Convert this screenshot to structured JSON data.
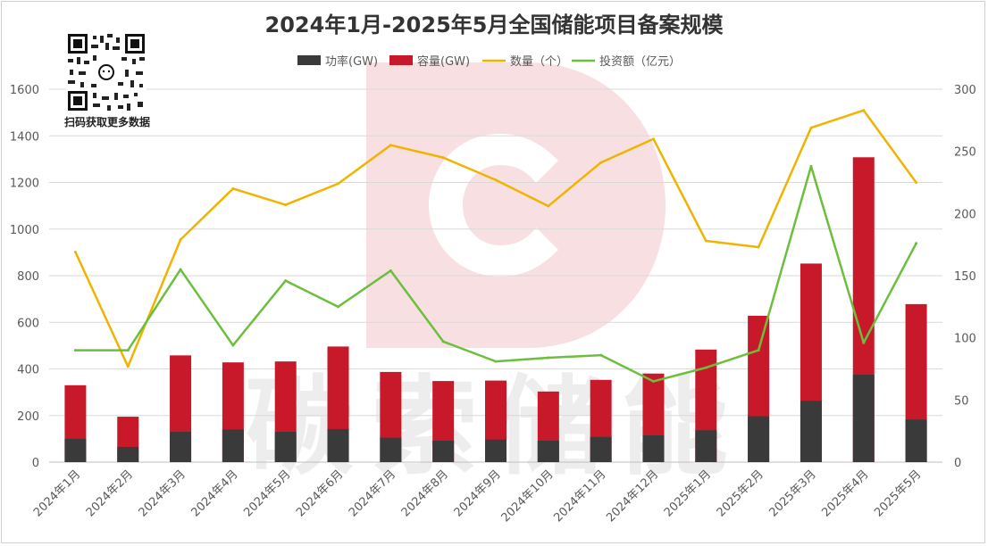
{
  "colors": {
    "power": "#3a3a3a",
    "capacity": "#c8192b",
    "count": "#f0b400",
    "investment": "#6cbf3c",
    "watermark": "#f5d6d8",
    "grid": "#d9d9d9",
    "axis_text": "#595959"
  },
  "qr_caption": "扫码获取更多数据",
  "chart_data": {
    "type": "bar",
    "title": "2024年1月-2025年5月全国储能项目备案规模",
    "categories": [
      "2024年1月",
      "2024年2月",
      "2024年3月",
      "2024年4月",
      "2024年5月",
      "2024年6月",
      "2024年7月",
      "2024年8月",
      "2024年9月",
      "2024年10月",
      "2024年11月",
      "2024年12月",
      "2025年1月",
      "2025年2月",
      "2025年3月",
      "2025年4月",
      "2025年5月"
    ],
    "series": [
      {
        "name": "功率(GW)",
        "type": "bar",
        "axis": "left",
        "color": "#3a3a3a",
        "values": [
          100,
          65,
          130,
          140,
          130,
          142,
          105,
          92,
          97,
          92,
          108,
          115,
          137,
          197,
          263,
          375,
          183
        ]
      },
      {
        "name": "容量(GW)",
        "type": "bar",
        "axis": "left",
        "color": "#c8192b",
        "values": [
          330,
          195,
          458,
          428,
          432,
          496,
          387,
          348,
          350,
          303,
          353,
          380,
          483,
          628,
          852,
          1308,
          678
        ]
      },
      {
        "name": "数量（个）",
        "type": "line",
        "axis": "right",
        "color": "#f0b400",
        "values": [
          169,
          77,
          179,
          220,
          207,
          224,
          255,
          245,
          227,
          206,
          241,
          260,
          178,
          173,
          269,
          283,
          225
        ]
      },
      {
        "name": "投资额（亿元）",
        "type": "line",
        "axis": "right",
        "color": "#6cbf3c",
        "values": [
          90,
          90,
          155,
          94,
          146,
          125,
          154,
          97,
          81,
          84,
          86,
          65,
          76,
          90,
          238,
          96,
          176
        ]
      }
    ],
    "y_left": {
      "min": 0,
      "max": 1600,
      "ticks": [
        0,
        200,
        400,
        600,
        800,
        1000,
        1200,
        1400,
        1600
      ]
    },
    "y_right": {
      "min": 0,
      "max": 300,
      "ticks": [
        0,
        50,
        100,
        150,
        200,
        250,
        300
      ]
    },
    "grid": true,
    "legend_position": "top",
    "watermark_text": "碳索储能"
  }
}
